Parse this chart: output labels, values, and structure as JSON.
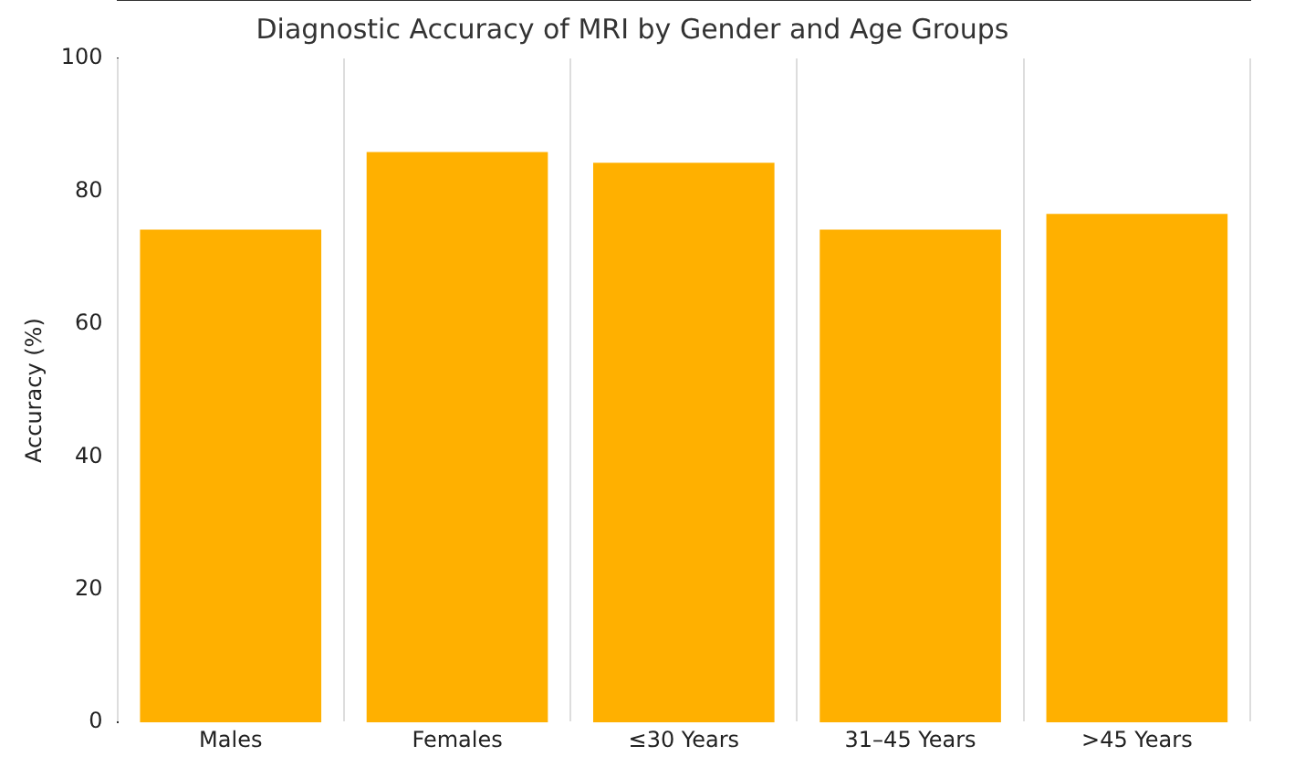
{
  "chart_data": {
    "type": "bar",
    "title": "Diagnostic Accuracy of MRI by Gender and Age Groups",
    "ylabel": "Accuracy (%)",
    "categories": [
      "Males",
      "Females",
      "≤30 Years",
      "31–45 Years",
      ">45 Years"
    ],
    "values": [
      74.2,
      85.9,
      84.3,
      74.2,
      76.6
    ],
    "color": "#ffb000",
    "ylim": [
      0,
      100
    ],
    "yticks": [
      0,
      20,
      40,
      60,
      80,
      100
    ],
    "grid": "x"
  }
}
